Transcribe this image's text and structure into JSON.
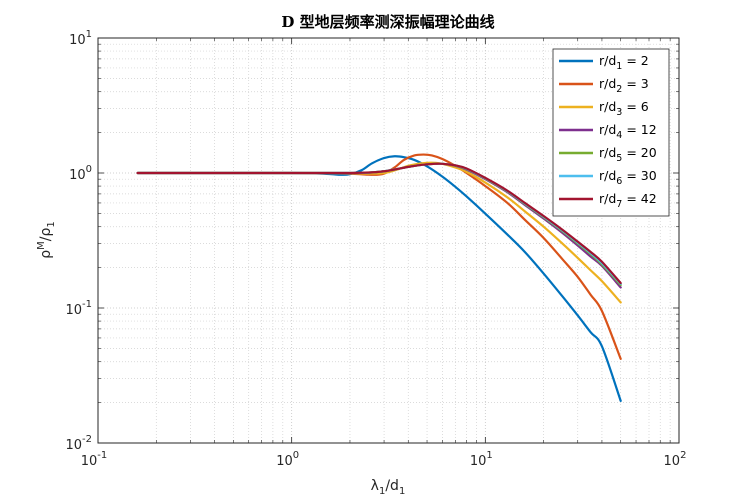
{
  "chart_data": {
    "type": "line",
    "title": "D 型地层频率测深振幅理论曲线",
    "xlabel": {
      "base": "λ",
      "sub1": "1",
      "mid": "/d",
      "sub2": "1"
    },
    "ylabel": {
      "base": "ρ",
      "sup": "M",
      "mid": "/ρ",
      "sub": "1"
    },
    "x_scale": "log",
    "y_scale": "log",
    "xlim": [
      0.1,
      100
    ],
    "ylim": [
      0.01,
      10
    ],
    "grid": true,
    "legend_position": "top-right",
    "x_ticks": [
      {
        "value": 0.1,
        "base": "10",
        "exp": "-1"
      },
      {
        "value": 1,
        "base": "10",
        "exp": "0"
      },
      {
        "value": 10,
        "base": "10",
        "exp": "1"
      },
      {
        "value": 100,
        "base": "10",
        "exp": "2"
      }
    ],
    "y_ticks": [
      {
        "value": 0.01,
        "base": "10",
        "exp": "-2"
      },
      {
        "value": 0.1,
        "base": "10",
        "exp": "-1"
      },
      {
        "value": 1,
        "base": "10",
        "exp": "0"
      },
      {
        "value": 10,
        "base": "10",
        "exp": "1"
      }
    ],
    "series": [
      {
        "label": {
          "pre": "r/d",
          "sub": "1",
          "post": " = 2"
        },
        "color": "#0072BD",
        "x": [
          0.16,
          0.5,
          1.0,
          1.3,
          1.6,
          1.8,
          2.0,
          2.3,
          2.6,
          3.0,
          3.4,
          3.8,
          4.3,
          5.0,
          6.0,
          7.0,
          8.0,
          10,
          13,
          16,
          20,
          25,
          30,
          35,
          40,
          50
        ],
        "y": [
          1.0,
          1.0,
          1.0,
          0.995,
          0.98,
          0.97,
          0.98,
          1.05,
          1.18,
          1.29,
          1.33,
          1.31,
          1.25,
          1.12,
          0.94,
          0.79,
          0.67,
          0.5,
          0.35,
          0.26,
          0.18,
          0.122,
          0.088,
          0.066,
          0.052,
          0.0205
        ]
      },
      {
        "label": {
          "pre": "r/d",
          "sub": "2",
          "post": " = 3"
        },
        "color": "#D95319",
        "x": [
          0.16,
          0.5,
          1.0,
          1.5,
          2.0,
          2.4,
          2.7,
          3.0,
          3.4,
          3.8,
          4.3,
          4.8,
          5.3,
          6.0,
          7.0,
          8.0,
          10,
          13,
          16,
          20,
          25,
          30,
          35,
          40,
          50
        ],
        "y": [
          1.0,
          1.0,
          1.0,
          0.998,
          0.99,
          0.975,
          0.97,
          0.99,
          1.1,
          1.25,
          1.35,
          1.37,
          1.35,
          1.27,
          1.13,
          1.0,
          0.8,
          0.6,
          0.45,
          0.33,
          0.23,
          0.17,
          0.125,
          0.095,
          0.042
        ]
      },
      {
        "label": {
          "pre": "r/d",
          "sub": "3",
          "post": " = 6"
        },
        "color": "#EDB120",
        "x": [
          0.16,
          0.5,
          1.0,
          1.5,
          2.0,
          2.5,
          3.0,
          3.5,
          4.0,
          4.5,
          5.0,
          5.5,
          6.0,
          7.0,
          8.0,
          10,
          13,
          16,
          20,
          25,
          30,
          35,
          40,
          50
        ],
        "y": [
          1.0,
          1.0,
          1.0,
          1.0,
          0.998,
          0.99,
          1.0,
          1.06,
          1.13,
          1.17,
          1.19,
          1.19,
          1.17,
          1.1,
          1.02,
          0.85,
          0.66,
          0.52,
          0.4,
          0.3,
          0.235,
          0.19,
          0.158,
          0.11
        ]
      },
      {
        "label": {
          "pre": "r/d",
          "sub": "4",
          "post": " = 12"
        },
        "color": "#7E2F8E",
        "x": [
          0.16,
          0.5,
          1.0,
          1.5,
          2.0,
          2.5,
          3.0,
          3.5,
          4.0,
          4.5,
          5.0,
          5.5,
          6.0,
          7.0,
          8.0,
          10,
          13,
          16,
          20,
          25,
          30,
          35,
          40,
          50
        ],
        "y": [
          1.0,
          1.0,
          1.0,
          1.0,
          1.0,
          1.005,
          1.03,
          1.07,
          1.11,
          1.14,
          1.16,
          1.17,
          1.17,
          1.13,
          1.06,
          0.9,
          0.72,
          0.58,
          0.46,
          0.36,
          0.29,
          0.24,
          0.205,
          0.142
        ]
      },
      {
        "label": {
          "pre": "r/d",
          "sub": "5",
          "post": " = 20"
        },
        "color": "#77AC30",
        "x": [
          0.16,
          0.5,
          1.0,
          1.5,
          2.0,
          2.5,
          3.0,
          3.5,
          4.0,
          4.5,
          5.0,
          5.5,
          6.0,
          7.0,
          8.0,
          10,
          13,
          16,
          20,
          25,
          30,
          35,
          40,
          50
        ],
        "y": [
          1.0,
          1.0,
          1.0,
          1.0,
          1.0,
          1.006,
          1.03,
          1.07,
          1.11,
          1.14,
          1.16,
          1.17,
          1.17,
          1.135,
          1.07,
          0.91,
          0.73,
          0.59,
          0.47,
          0.37,
          0.3,
          0.25,
          0.21,
          0.148
        ]
      },
      {
        "label": {
          "pre": "r/d",
          "sub": "6",
          "post": " = 30"
        },
        "color": "#4DBEEE",
        "x": [
          0.16,
          0.5,
          1.0,
          1.5,
          2.0,
          2.5,
          3.0,
          3.5,
          4.0,
          4.5,
          5.0,
          5.5,
          6.0,
          7.0,
          8.0,
          10,
          13,
          16,
          20,
          25,
          30,
          35,
          40,
          50
        ],
        "y": [
          1.0,
          1.0,
          1.0,
          1.0,
          1.0,
          1.007,
          1.03,
          1.07,
          1.11,
          1.14,
          1.16,
          1.17,
          1.17,
          1.14,
          1.075,
          0.915,
          0.735,
          0.595,
          0.475,
          0.375,
          0.305,
          0.255,
          0.215,
          0.151
        ]
      },
      {
        "label": {
          "pre": "r/d",
          "sub": "7",
          "post": " = 42"
        },
        "color": "#A2142F",
        "x": [
          0.16,
          0.5,
          1.0,
          1.5,
          2.0,
          2.5,
          3.0,
          3.5,
          4.0,
          4.5,
          5.0,
          5.5,
          6.0,
          7.0,
          8.0,
          10,
          13,
          16,
          20,
          25,
          30,
          35,
          40,
          50
        ],
        "y": [
          1.0,
          1.0,
          1.0,
          1.0,
          1.0,
          1.008,
          1.03,
          1.07,
          1.11,
          1.14,
          1.16,
          1.17,
          1.17,
          1.14,
          1.08,
          0.92,
          0.74,
          0.6,
          0.48,
          0.38,
          0.31,
          0.26,
          0.22,
          0.153
        ]
      }
    ]
  }
}
